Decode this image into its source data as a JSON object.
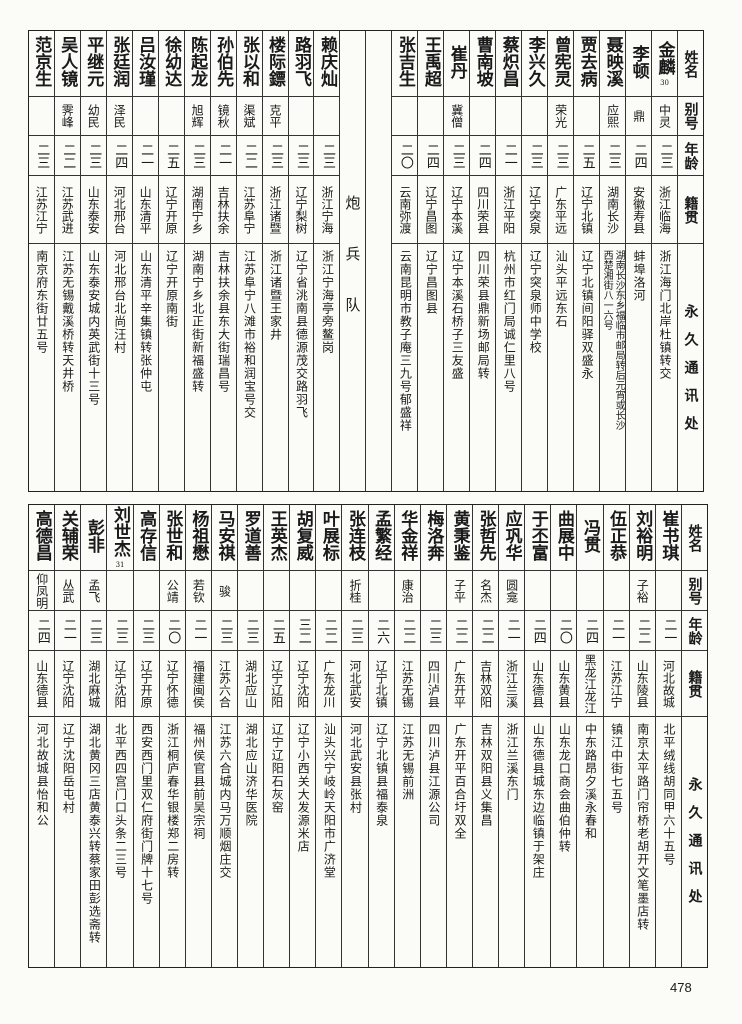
{
  "top": {
    "header": {
      "name": "姓名",
      "alias": "别号",
      "age": "年龄",
      "origin": "籍贯",
      "address": "永久通讯处"
    },
    "columns": [
      {
        "type": "person",
        "name": "金麟",
        "note": "30",
        "alias": "中灵",
        "age": "二三",
        "origin": "浙江临海",
        "address": [
          "浙江海门北岸杜镇转交"
        ]
      },
      {
        "type": "person",
        "name": "李顿",
        "alias": "鼎",
        "age": "二四",
        "origin": "安徽寿县",
        "address": [
          "蚌埠洛河"
        ]
      },
      {
        "type": "person",
        "name": "聂映溪",
        "alias": "应熙",
        "age": "二三",
        "origin": "湖南长沙",
        "address": [
          "湖南长沙东乡福临市邮局转后元宵或长沙",
          "西楚湘街八一六号"
        ]
      },
      {
        "type": "person",
        "name": "贾去病",
        "alias": "",
        "age": "二五",
        "origin": "辽宁北镇",
        "address": [
          "辽宁北镇间阳驿双盛永"
        ]
      },
      {
        "type": "person",
        "name": "曾宪灵",
        "alias": "荣光",
        "age": "二三",
        "origin": "广东平远",
        "address": [
          "汕头平远东石"
        ]
      },
      {
        "type": "person",
        "name": "李兴久",
        "alias": "",
        "age": "二三",
        "origin": "辽宁突泉",
        "address": [
          "辽宁突泉师中学校"
        ]
      },
      {
        "type": "person",
        "name": "蔡炽昌",
        "alias": "",
        "age": "二一",
        "origin": "浙江平阳",
        "address": [
          "杭州市红门局诚仁里八号"
        ]
      },
      {
        "type": "person",
        "name": "曹南坡",
        "alias": "",
        "age": "二四",
        "origin": "四川荣县",
        "address": [
          "四川荣县鼎新场邮局转"
        ]
      },
      {
        "type": "person",
        "name": "崔丹",
        "alias": "冀僧",
        "age": "二三",
        "origin": "辽宁本溪",
        "address": [
          "辽宁本溪石桥子三友盛"
        ]
      },
      {
        "type": "person",
        "name": "王禹超",
        "alias": "",
        "age": "二四",
        "origin": "辽宁昌图",
        "address": [
          "辽宁昌图县"
        ]
      },
      {
        "type": "person",
        "name": "张吉生",
        "alias": "",
        "age": "二〇",
        "origin": "云南弥渡",
        "address": [
          "云南昆明市教子庵三九号郁盛祥"
        ]
      },
      {
        "type": "blank"
      },
      {
        "type": "section",
        "label": "炮兵队"
      },
      {
        "type": "person",
        "name": "赖庆灿",
        "alias": "",
        "age": "二三",
        "origin": "浙江宁海",
        "address": [
          "浙江宁海亭旁鳌岗"
        ]
      },
      {
        "type": "person",
        "name": "路羽飞",
        "alias": "",
        "age": "二三",
        "origin": "辽宁梨树",
        "address": [
          "辽宁省洮南县德源茂交路羽飞"
        ]
      },
      {
        "type": "person",
        "name": "楼际鏢",
        "alias": "克平",
        "age": "二三",
        "origin": "浙江诸暨",
        "address": [
          "浙江诸暨王家井"
        ]
      },
      {
        "type": "person",
        "name": "张以和",
        "alias": "渠斌",
        "age": "二二",
        "origin": "江苏阜宁",
        "address": [
          "江苏阜宁八滩市裕和润宝号交"
        ]
      },
      {
        "type": "person",
        "name": "孙伯先",
        "alias": "镜秋",
        "age": "二一",
        "origin": "吉林扶余",
        "address": [
          "吉林扶余县东大街瑞昌号"
        ]
      },
      {
        "type": "person",
        "name": "陈起龙",
        "alias": "旭辉",
        "age": "二三",
        "origin": "湖南宁乡",
        "address": [
          "湖南宁乡北正街新福盛转"
        ]
      },
      {
        "type": "person",
        "name": "徐幼达",
        "alias": "",
        "age": "二五",
        "origin": "辽宁开原",
        "address": [
          "辽宁开原南街"
        ]
      },
      {
        "type": "person",
        "name": "吕汝瑾",
        "alias": "",
        "age": "二一",
        "origin": "山东清平",
        "address": [
          "山东清平辛集镇转张仲屯"
        ]
      },
      {
        "type": "person",
        "name": "张廷润",
        "alias": "泽民",
        "age": "二四",
        "origin": "河北邢台",
        "address": [
          "河北邢台北尚汪村"
        ]
      },
      {
        "type": "person",
        "name": "平继元",
        "alias": "幼民",
        "age": "二三",
        "origin": "山东泰安",
        "address": [
          "山东泰安城内英武街十三号"
        ]
      },
      {
        "type": "person",
        "name": "吴人镜",
        "alias": "霁峰",
        "age": "二二",
        "origin": "江苏武进",
        "address": [
          "江苏无锡戴溪桥转天井桥"
        ]
      },
      {
        "type": "person",
        "name": "范京生",
        "alias": "",
        "age": "二三",
        "origin": "江苏江宁",
        "address": [
          "南京府东街廿五号"
        ]
      }
    ]
  },
  "bottom": {
    "header": {
      "name": "姓名",
      "alias": "别号",
      "age": "年龄",
      "origin": "籍贯",
      "address": "永久通讯处"
    },
    "columns": [
      {
        "type": "person",
        "name": "崔书琪",
        "alias": "",
        "age": "二一",
        "origin": "河北故城",
        "address": [
          "北平绒线胡同甲六十五号"
        ]
      },
      {
        "type": "person",
        "name": "刘裕明",
        "alias": "子裕",
        "age": "二二",
        "origin": "山东陵县",
        "address": [
          "南京太平路门帘桥老胡开文笔墨店转"
        ]
      },
      {
        "type": "person",
        "name": "伍正恭",
        "alias": "",
        "age": "二一",
        "origin": "江苏江宁",
        "address": [
          "镇江中街七五号"
        ]
      },
      {
        "type": "person",
        "name": "冯贯",
        "alias": "",
        "age": "二四",
        "origin": "黑龙江龙江",
        "address": [
          "中东路昂夕溪永春和"
        ]
      },
      {
        "type": "person",
        "name": "曲展中",
        "alias": "",
        "age": "二〇",
        "origin": "山东黄县",
        "address": [
          "山东龙口商会曲伯仲转"
        ]
      },
      {
        "type": "person",
        "name": "于丕富",
        "alias": "",
        "age": "二四",
        "origin": "山东德县",
        "address": [
          "山东德县城东边临镇于架庄"
        ]
      },
      {
        "type": "person",
        "name": "应巩华",
        "alias": "圆龛",
        "age": "二一",
        "origin": "浙江兰溪",
        "address": [
          "浙江兰溪东门"
        ]
      },
      {
        "type": "person",
        "name": "张哲先",
        "alias": "名杰",
        "age": "二二",
        "origin": "吉林双阳",
        "address": [
          "吉林双阳县义集昌"
        ]
      },
      {
        "type": "person",
        "name": "黄秉鉴",
        "alias": "子平",
        "age": "二二",
        "origin": "广东开平",
        "address": [
          "广东开平百合圩双全"
        ]
      },
      {
        "type": "person",
        "name": "梅洛奔",
        "alias": "",
        "age": "二三",
        "origin": "四川泸县",
        "address": [
          "四川泸县江源公司"
        ]
      },
      {
        "type": "person",
        "name": "华金祥",
        "alias": "康治",
        "age": "二二",
        "origin": "江苏无锡",
        "address": [
          "江苏无锡前洲"
        ]
      },
      {
        "type": "person",
        "name": "孟繁经",
        "alias": "",
        "age": "二六",
        "origin": "辽宁北镇",
        "address": [
          "辽宁北镇县福泰泉"
        ]
      },
      {
        "type": "person",
        "name": "张连枝",
        "alias": "折桂",
        "age": "二三",
        "origin": "河北武安",
        "address": [
          "河北武安县张村"
        ]
      },
      {
        "type": "person",
        "name": "叶展标",
        "alias": "",
        "age": "二二",
        "origin": "广东龙川",
        "address": [
          "汕头兴宁岐岭天阳市广济堂"
        ]
      },
      {
        "type": "person",
        "name": "胡复威",
        "alias": "",
        "age": "三二",
        "origin": "辽宁沈阳",
        "address": [
          "辽宁小西关大发源米店"
        ]
      },
      {
        "type": "person",
        "name": "王英杰",
        "alias": "",
        "age": "二五",
        "origin": "辽宁辽阳",
        "address": [
          "辽宁辽阳石灰窑"
        ]
      },
      {
        "type": "person",
        "name": "罗道善",
        "alias": "",
        "age": "二三",
        "origin": "湖北应山",
        "address": [
          "湖北应山济华医院"
        ]
      },
      {
        "type": "person",
        "name": "马安祺",
        "alias": "骏",
        "age": "二三",
        "origin": "江苏六合",
        "address": [
          "江苏六合城内马万顺烟庄交"
        ]
      },
      {
        "type": "person",
        "name": "杨祖懋",
        "alias": "若钦",
        "age": "二一",
        "origin": "福建闽侯",
        "address": [
          "福州侯官县前吴宗祠"
        ]
      },
      {
        "type": "person",
        "name": "张世和",
        "alias": "公靖",
        "age": "二〇",
        "origin": "辽宁怀德",
        "address": [
          "浙江桐庐春华银楼郑二房转"
        ]
      },
      {
        "type": "person",
        "name": "高存信",
        "alias": "",
        "age": "二三",
        "origin": "辽宁开原",
        "address": [
          "西安西门里双仁府街门牌十七号"
        ]
      },
      {
        "type": "person",
        "name": "刘世杰",
        "note": "31",
        "alias": "",
        "age": "二三",
        "origin": "辽宁沈阳",
        "address": [
          "北平西四宫门口头条二三号"
        ]
      },
      {
        "type": "person",
        "name": "彭非",
        "alias": "孟飞",
        "age": "二三",
        "origin": "湖北麻城",
        "address": [
          "湖北黄冈三店黄泰兴转蔡家田彭选斋转"
        ]
      },
      {
        "type": "person",
        "name": "关辅荣",
        "alias": "丛武",
        "age": "二一",
        "origin": "辽宁沈阳",
        "address": [
          "辽宁沈阳岳屯村"
        ]
      },
      {
        "type": "person",
        "name": "高德昌",
        "alias": "仰凤明",
        "age": "二四",
        "origin": "山东德县",
        "address": [
          "河北故城县怡和公"
        ]
      }
    ]
  },
  "page_number": "478"
}
